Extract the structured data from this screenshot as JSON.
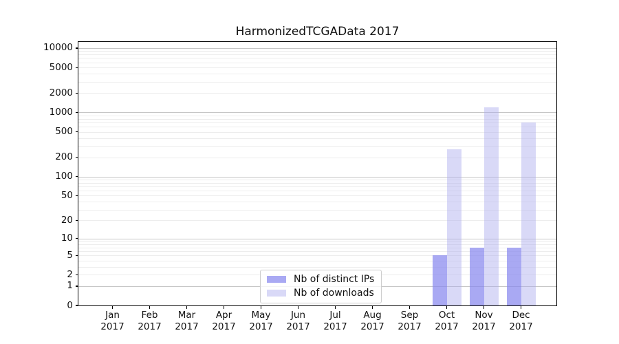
{
  "title": "HarmonizedTCGAData 2017",
  "chart_data": {
    "type": "bar",
    "title": "HarmonizedTCGAData 2017",
    "categories": [
      "Jan 2017",
      "Feb 2017",
      "Mar 2017",
      "Apr 2017",
      "May 2017",
      "Jun 2017",
      "Jul 2017",
      "Aug 2017",
      "Sep 2017",
      "Oct 2017",
      "Nov 2017",
      "Dec 2017"
    ],
    "series": [
      {
        "name": "Nb of distinct IPs",
        "values": [
          0,
          0,
          0,
          0,
          0,
          0,
          0,
          0,
          0,
          5,
          7,
          7
        ],
        "fill": "rgba(136,136,238,0.72)",
        "legend_color": "#a9a9f3"
      },
      {
        "name": "Nb of downloads",
        "values": [
          0,
          0,
          0,
          0,
          0,
          0,
          0,
          0,
          0,
          270,
          1200,
          700
        ],
        "fill": "rgba(170,170,238,0.45)",
        "legend_color": "#d9d9f7"
      }
    ],
    "yticks": [
      0,
      1,
      2,
      5,
      10,
      20,
      50,
      100,
      200,
      500,
      1000,
      2000,
      5000,
      10000
    ],
    "ylim": [
      0,
      10000
    ],
    "scale": "log10(value+1)",
    "xlabel": "",
    "ylabel": "",
    "grid": true,
    "legend_position": "bottom-center",
    "colors": {
      "distinct_ips": "#a9a9f3",
      "downloads": "#d9d9f7",
      "major_grid": "#c6c6c6",
      "minor_grid": "#ededed"
    }
  }
}
